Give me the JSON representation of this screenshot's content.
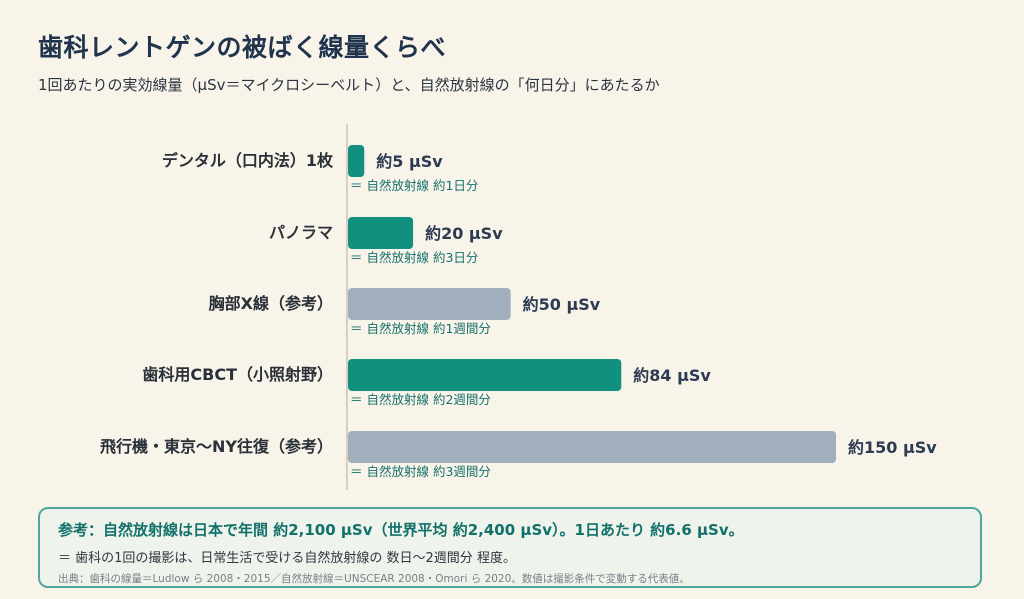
{
  "title": "歯科レントゲンの被ばく線量くらべ",
  "subtitle": "1回あたりの実効線量（µSv＝マイクロシーベルト）と、自然放射線の「何日分」にあたるか",
  "colors": {
    "dental": "#11907f",
    "reference": "#a1aebd",
    "note_text": "#15706a",
    "axis_line": "#cdc4ad",
    "callout_border": "#4ea79b"
  },
  "chart_data": {
    "type": "bar",
    "orientation": "horizontal",
    "categories": [
      "デンタル（口内法）1枚",
      "パノラマ",
      "胸部X線（参考）",
      "歯科用CBCT（小照射野）",
      "飛行機・東京〜NY往復（参考）"
    ],
    "values": [
      5,
      20,
      50,
      84,
      150
    ],
    "value_labels": [
      "約5 µSv",
      "約20 µSv",
      "約50 µSv",
      "約84 µSv",
      "約150 µSv"
    ],
    "notes": [
      "＝ 自然放射線 約1日分",
      "＝ 自然放射線 約3日分",
      "＝ 自然放射線 約1週間分",
      "＝ 自然放射線 約2週間分",
      "＝ 自然放射線 約3週間分"
    ],
    "bar_kind": [
      "dental",
      "dental",
      "reference",
      "dental",
      "reference"
    ],
    "unit": "µSv",
    "grid": false
  },
  "callout": {
    "main": "参考：自然放射線は日本で年間 約2,100 µSv（世界平均 約2,400 µSv）。1日あたり 約6.6 µSv。",
    "sub": "＝ 歯科の1回の撮影は、日常生活で受ける自然放射線の 数日〜2週間分 程度。",
    "source": "出典：歯科の線量＝Ludlow ら 2008・2015／自然放射線＝UNSCEAR 2008・Omori ら 2020。数値は撮影条件で変動する代表値。"
  }
}
